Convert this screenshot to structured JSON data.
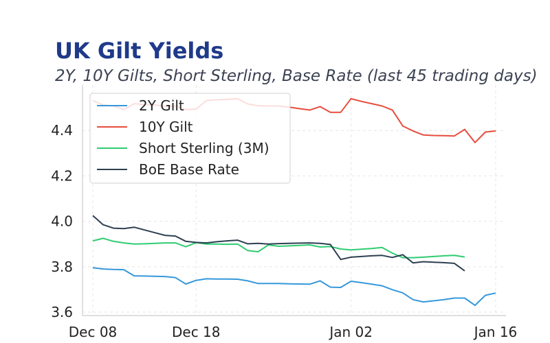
{
  "chart_data": {
    "type": "line",
    "title": "UK Gilt Yields",
    "subtitle": "2Y, 10Y Gilts, Short Sterling, Base Rate (last 45 trading days)",
    "xlabel": "",
    "ylabel": "",
    "x_ticks": [
      "Dec 08",
      "Dec 18",
      "Jan 02",
      "Jan 16"
    ],
    "x_tick_day_index": [
      0,
      10,
      25,
      39
    ],
    "y_ticks": [
      3.6,
      3.8,
      4.0,
      4.2,
      4.4
    ],
    "ylim": [
      3.6,
      4.6
    ],
    "grid": true,
    "legend_position": "top-left",
    "series": [
      {
        "name": "2Y Gilt",
        "color": "#3498db",
        "x": [
          0,
          1,
          2,
          3,
          4,
          5,
          6,
          7,
          8,
          9,
          10,
          11,
          12,
          13,
          14,
          15,
          16,
          17,
          18,
          19,
          20,
          21,
          22,
          23,
          24,
          25,
          26,
          27,
          28,
          29,
          30,
          31,
          32,
          33,
          34,
          35,
          36,
          37,
          38,
          39
        ],
        "values": [
          3.796,
          3.79,
          3.788,
          3.787,
          3.76,
          3.759,
          3.758,
          3.757,
          3.752,
          3.724,
          3.74,
          3.747,
          3.746,
          3.746,
          3.745,
          3.738,
          3.726,
          3.726,
          3.726,
          3.725,
          3.724,
          3.723,
          3.738,
          3.71,
          3.709,
          3.736,
          3.73,
          3.723,
          3.716,
          3.699,
          3.685,
          3.655,
          3.645,
          3.65,
          3.655,
          3.662,
          3.662,
          3.63,
          3.674,
          3.684
        ]
      },
      {
        "name": "10Y Gilt",
        "color": "#e74c3c",
        "x": [
          0,
          1,
          2,
          3,
          4,
          5,
          6,
          7,
          8,
          9,
          10,
          11,
          12,
          13,
          14,
          15,
          16,
          17,
          18,
          19,
          20,
          21,
          22,
          23,
          24,
          25,
          26,
          27,
          28,
          29,
          30,
          31,
          32,
          33,
          34,
          35,
          36,
          37,
          38,
          39
        ],
        "values": [
          4.532,
          4.512,
          4.508,
          4.492,
          4.518,
          4.514,
          4.512,
          4.507,
          4.508,
          4.492,
          4.494,
          4.532,
          4.535,
          4.537,
          4.54,
          4.517,
          4.509,
          4.508,
          4.508,
          4.503,
          4.496,
          4.49,
          4.505,
          4.48,
          4.48,
          4.54,
          4.528,
          4.518,
          4.508,
          4.49,
          4.42,
          4.398,
          4.38,
          4.378,
          4.377,
          4.376,
          4.405,
          4.347,
          4.393,
          4.398
        ]
      },
      {
        "name": "Short Sterling (3M)",
        "color": "#2ecc71",
        "x": [
          0,
          1,
          2,
          3,
          4,
          5,
          6,
          7,
          8,
          9,
          10,
          11,
          12,
          13,
          14,
          15,
          16,
          17,
          18,
          19,
          20,
          21,
          22,
          23,
          24,
          25,
          26,
          27,
          28,
          29,
          30,
          31,
          32,
          33,
          34,
          35,
          36
        ],
        "values": [
          3.914,
          3.925,
          3.912,
          3.905,
          3.9,
          3.901,
          3.903,
          3.905,
          3.905,
          3.888,
          3.906,
          3.9,
          3.9,
          3.899,
          3.9,
          3.871,
          3.866,
          3.896,
          3.89,
          3.892,
          3.894,
          3.896,
          3.887,
          3.889,
          3.878,
          3.874,
          3.877,
          3.88,
          3.885,
          3.86,
          3.84,
          3.84,
          3.842,
          3.845,
          3.848,
          3.85,
          3.843
        ]
      },
      {
        "name": "BoE Base Rate",
        "color": "#2c3e50",
        "x": [
          0,
          1,
          2,
          3,
          4,
          5,
          6,
          7,
          8,
          9,
          10,
          11,
          12,
          13,
          14,
          15,
          16,
          17,
          18,
          19,
          20,
          21,
          22,
          23,
          24,
          25,
          26,
          27,
          28,
          29,
          30,
          31,
          32,
          33,
          34,
          35,
          36
        ],
        "values": [
          4.025,
          3.985,
          3.97,
          3.968,
          3.974,
          3.962,
          3.95,
          3.938,
          3.935,
          3.912,
          3.907,
          3.905,
          3.91,
          3.914,
          3.917,
          3.901,
          3.903,
          3.9,
          3.902,
          3.903,
          3.904,
          3.905,
          3.903,
          3.898,
          3.832,
          3.842,
          3.845,
          3.848,
          3.85,
          3.841,
          3.853,
          3.817,
          3.822,
          3.82,
          3.818,
          3.815,
          3.782
        ]
      }
    ]
  }
}
